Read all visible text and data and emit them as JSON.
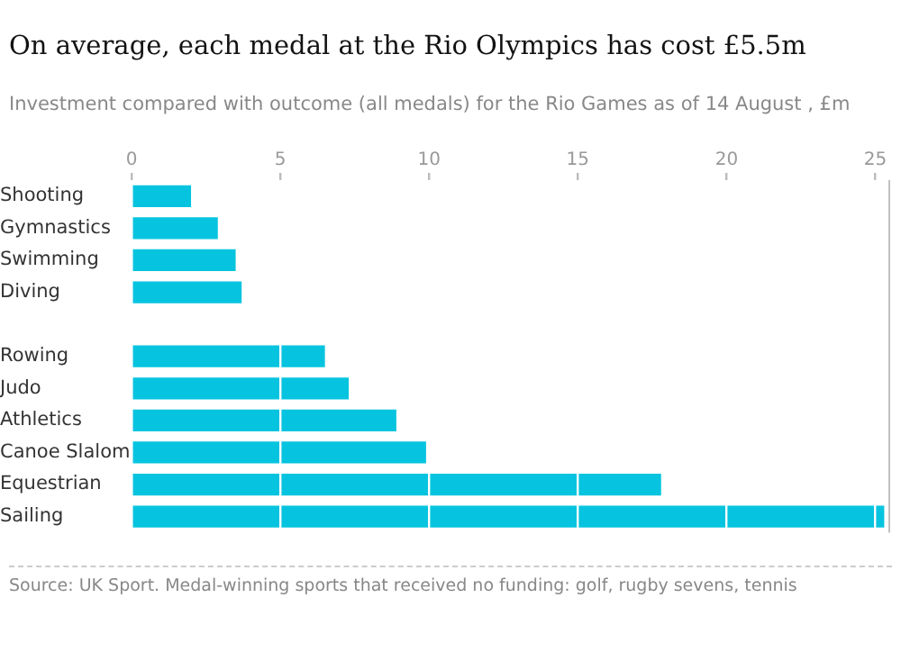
{
  "chart_data": {
    "type": "bar",
    "orientation": "horizontal",
    "title": "On average, each medal at the Rio Olympics has cost £5.5m",
    "subtitle": "Investment compared with outcome (all medals) for the Rio Games as of 14 August , £m",
    "categories": [
      "Shooting",
      "Gymnastics",
      "Swimming",
      "Diving",
      null,
      "Rowing",
      "Judo",
      "Athletics",
      "Canoe Slalom",
      "Equestrian",
      "Sailing"
    ],
    "values": [
      2.0,
      2.9,
      3.5,
      3.7,
      null,
      6.5,
      7.3,
      8.9,
      9.9,
      17.8,
      25.3
    ],
    "color": "#06c4df",
    "xlim": [
      0,
      25.5
    ],
    "xticks": [
      0,
      5,
      10,
      15,
      20,
      25
    ],
    "grid": "x",
    "legend": false,
    "annotations": [
      "Source: UK Sport. Medal-winning sports that received no funding: golf, rugby sevens, tennis"
    ]
  }
}
